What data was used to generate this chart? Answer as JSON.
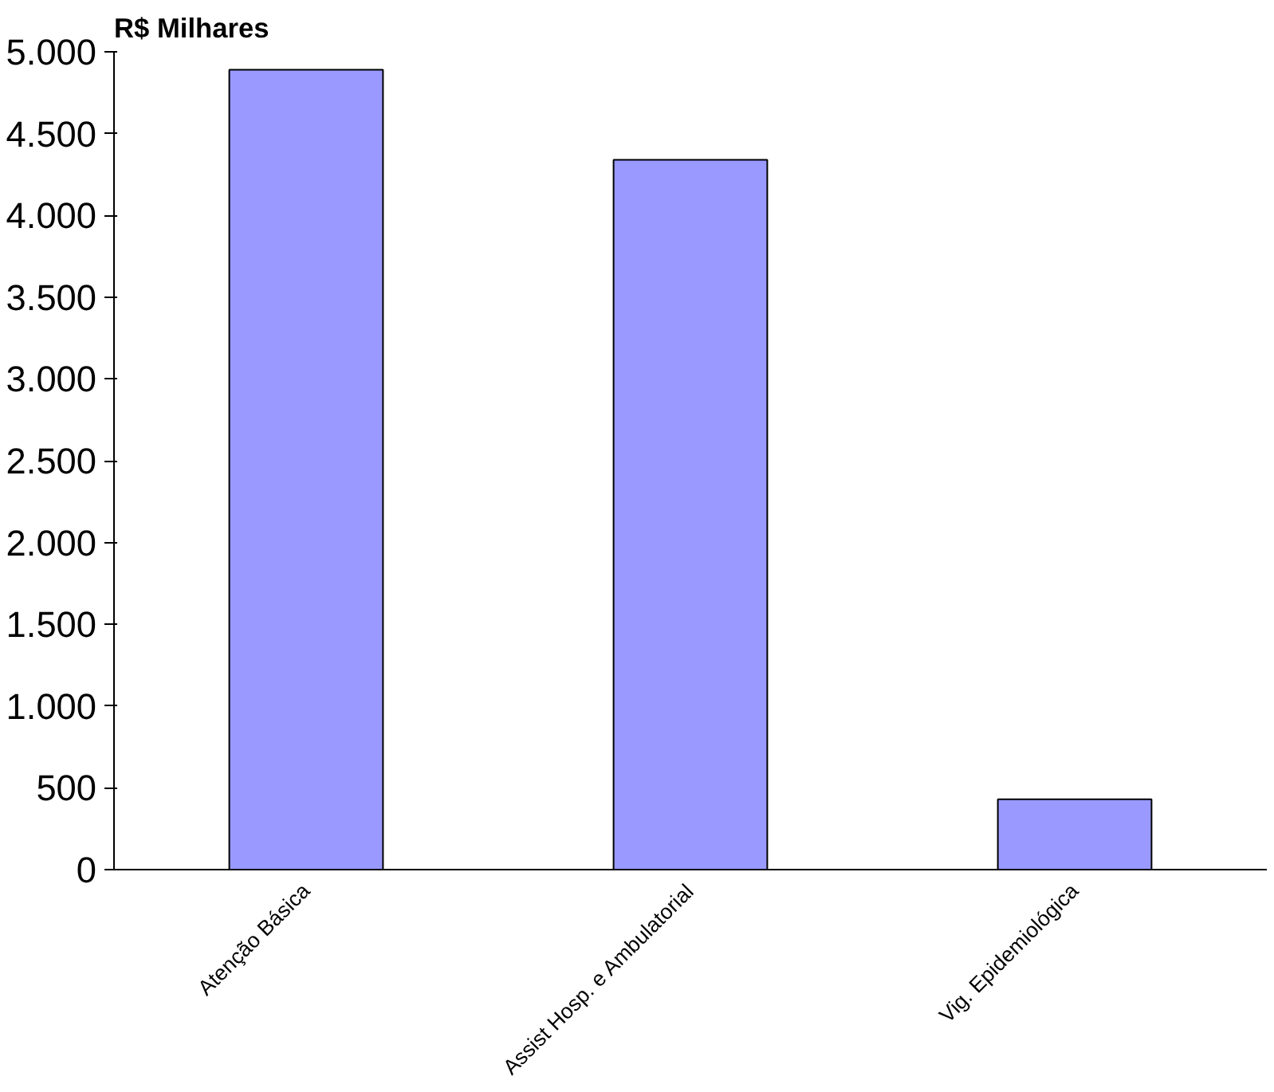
{
  "chart_data": {
    "type": "bar",
    "ylabel": "R$ Milhares",
    "categories": [
      "Atenção Básica",
      "Assist Hosp. e Ambulatorial",
      "Vig. Epidemiológica"
    ],
    "values": [
      4890,
      4340,
      430
    ],
    "color": "#9999ff",
    "ylim": [
      0,
      5000
    ],
    "yticks": [
      0,
      {
        "value": 500,
        "label": "500"
      },
      {
        "value": 1000,
        "label": "1.000"
      },
      {
        "value": 1500,
        "label": "1.500"
      },
      {
        "value": 2000,
        "label": "2.000"
      },
      {
        "value": 2500,
        "label": "2.500"
      },
      {
        "value": 3000,
        "label": "3.000"
      },
      {
        "value": 3500,
        "label": "3.500"
      },
      {
        "value": 4000,
        "label": "4.000"
      },
      {
        "value": 4500,
        "label": "4.500"
      },
      {
        "value": 5000,
        "label": "5.000"
      }
    ],
    "grid": false
  }
}
